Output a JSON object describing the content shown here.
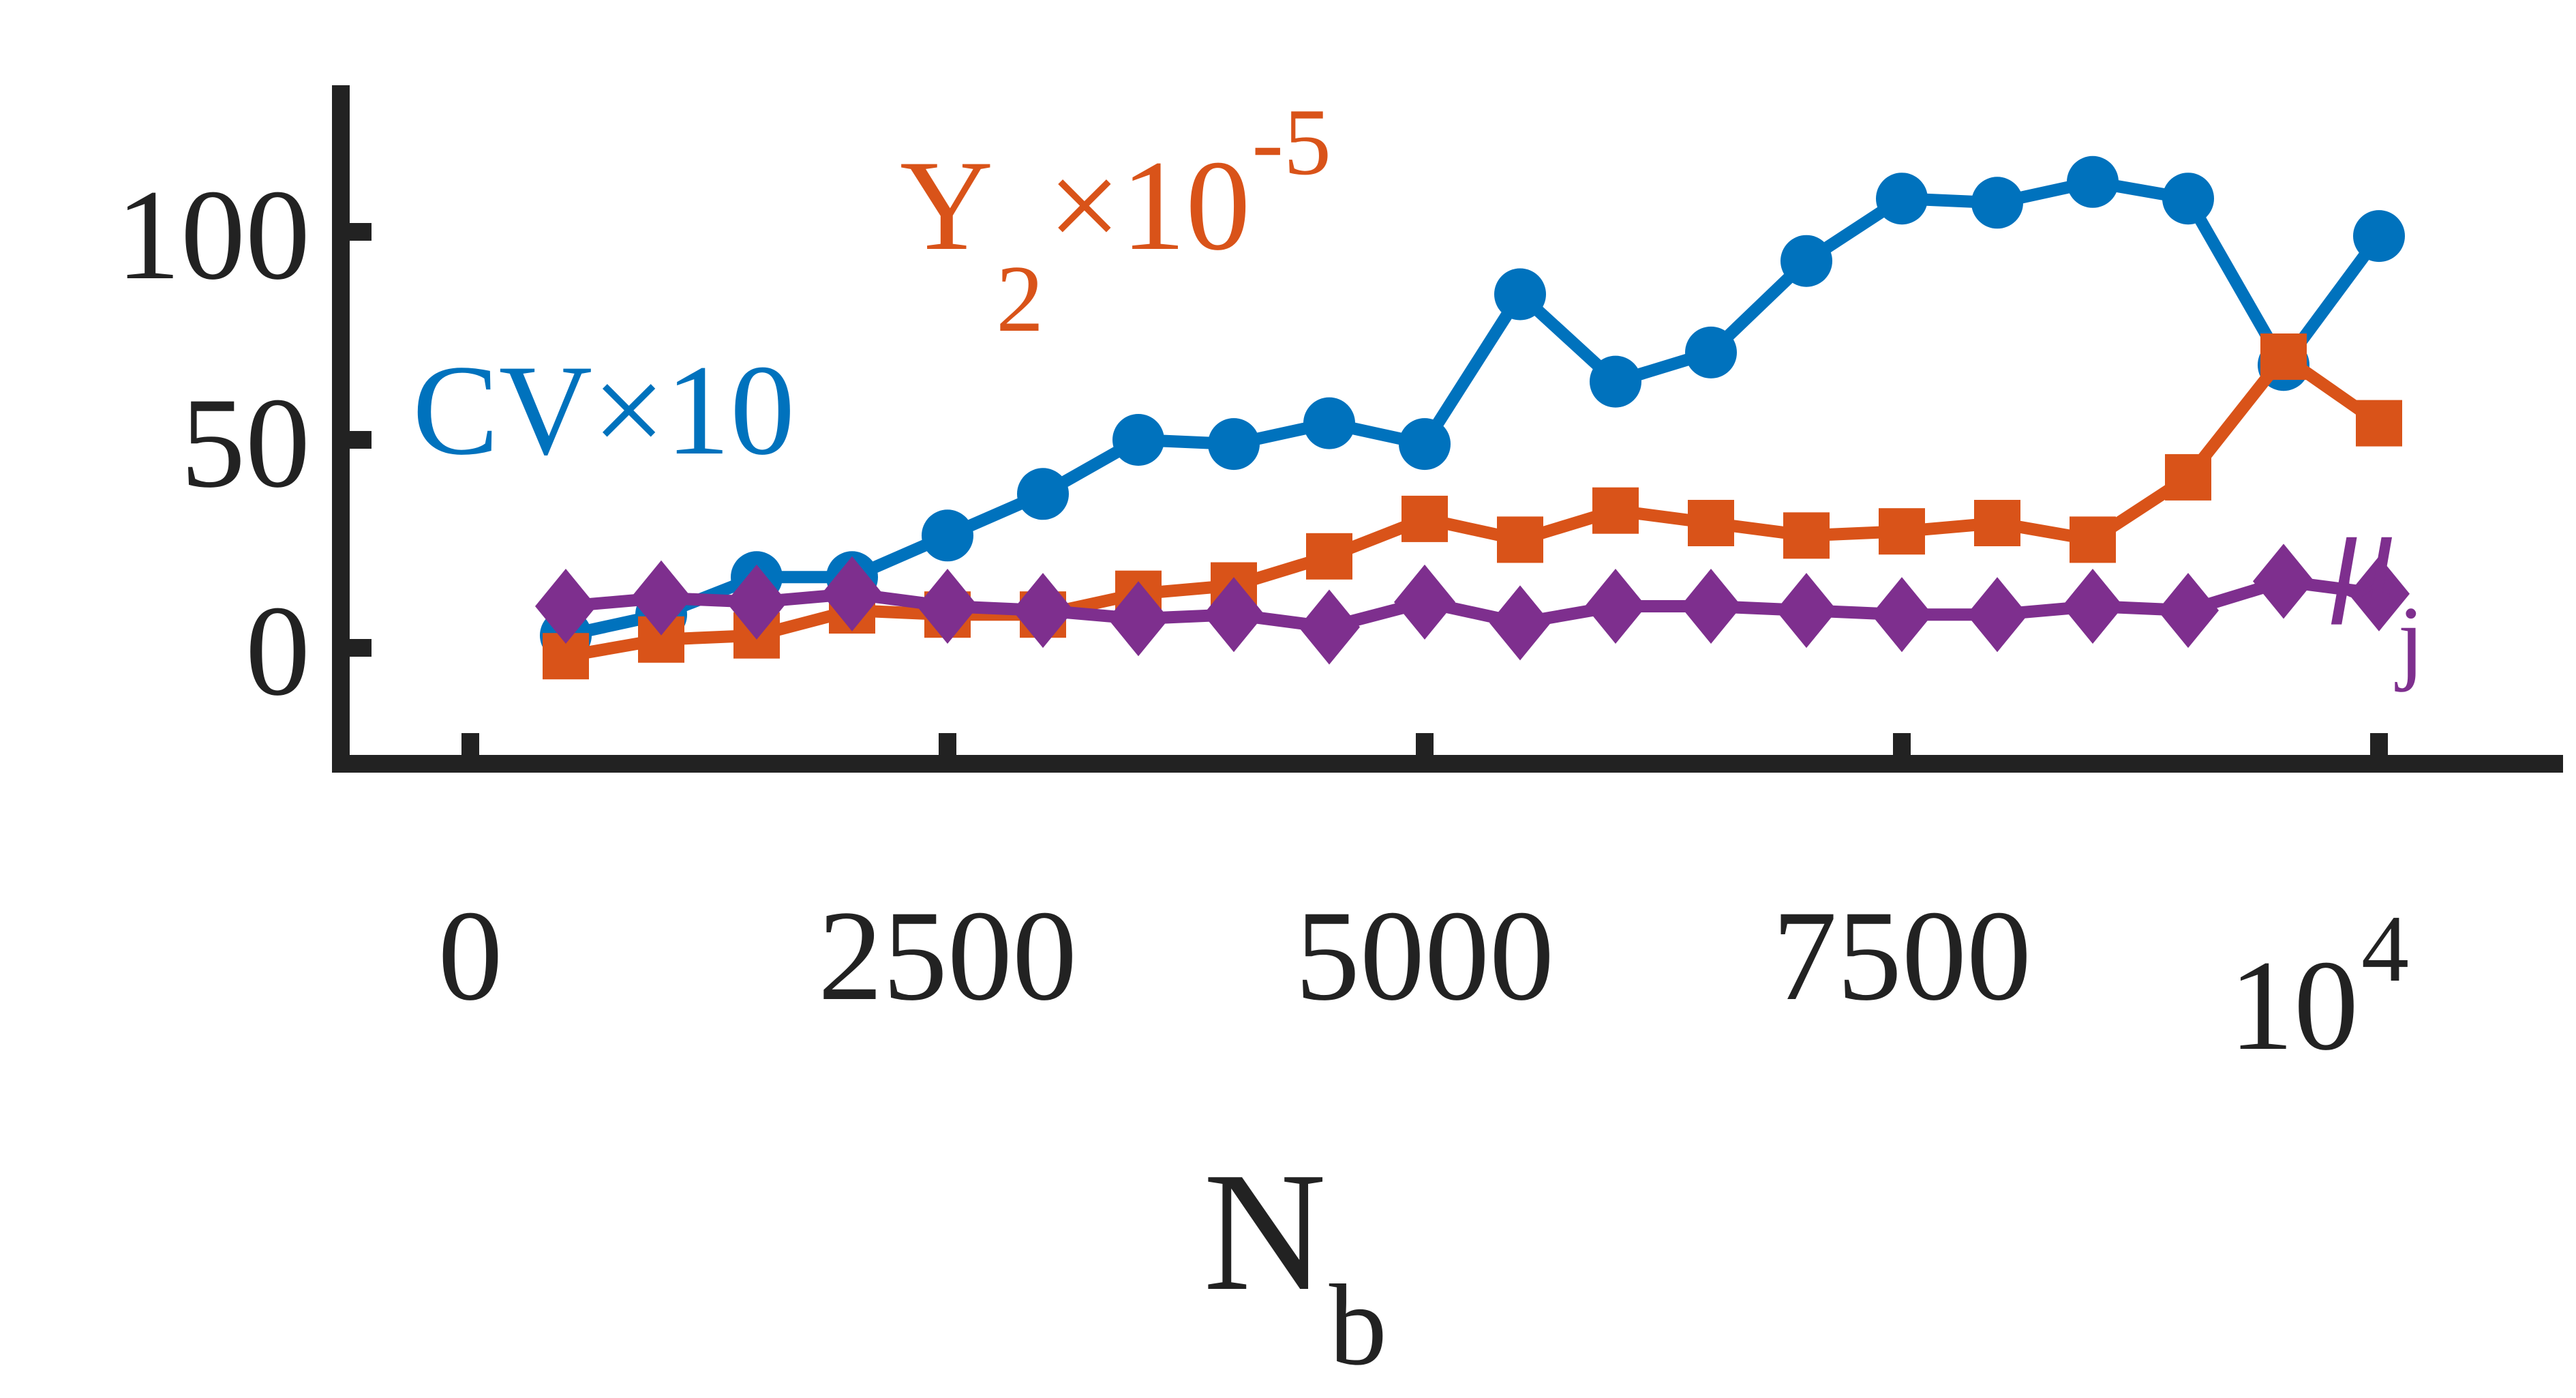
{
  "chart_data": {
    "type": "line",
    "xlabel": "N",
    "xlabel_sub": "b",
    "x_tick_labels": [
      "0",
      "2500",
      "5000",
      "7500"
    ],
    "x_extra_label": {
      "base": "10",
      "exp": "4"
    },
    "x_ticks": [
      0,
      2500,
      5000,
      7500,
      10000
    ],
    "y_tick_labels": [
      "0",
      "50",
      "100"
    ],
    "y_ticks": [
      0,
      50,
      100
    ],
    "xlim": [
      -800,
      11200
    ],
    "ylim": [
      -25,
      135
    ],
    "grid": false,
    "legend": "inline labels",
    "x": [
      500,
      1000,
      1500,
      2000,
      2500,
      3000,
      3500,
      4000,
      4500,
      5000,
      5500,
      6000,
      6500,
      7000,
      7500,
      8000,
      8500,
      9000,
      9500,
      10000
    ],
    "series": [
      {
        "name": "CV×10",
        "label_text": "CV×10",
        "color": "#0072BD",
        "marker": "circle",
        "values": [
          3,
          8,
          17,
          17,
          27,
          37,
          50,
          49,
          54,
          49,
          85,
          64,
          71,
          93,
          108,
          107,
          112,
          108,
          68,
          99
        ]
      },
      {
        "name": "Y2×10-5",
        "label_main": "Y",
        "label_sub": "2",
        "label_mid": "×10",
        "label_sup": "-5",
        "color": "#D95319",
        "marker": "square",
        "values": [
          -2,
          2,
          3,
          9,
          8,
          8,
          13,
          15,
          22,
          31,
          26,
          33,
          30,
          27,
          28,
          30,
          26,
          41,
          70,
          54
        ]
      },
      {
        "name": "μj",
        "label_main": "μ",
        "label_sub": "j",
        "color": "#7E2F8E",
        "marker": "diamond",
        "values": [
          10,
          12,
          11,
          13,
          10,
          9,
          7,
          8,
          5,
          11,
          6,
          10,
          10,
          9,
          8,
          8,
          10,
          9,
          16,
          13
        ]
      }
    ]
  }
}
